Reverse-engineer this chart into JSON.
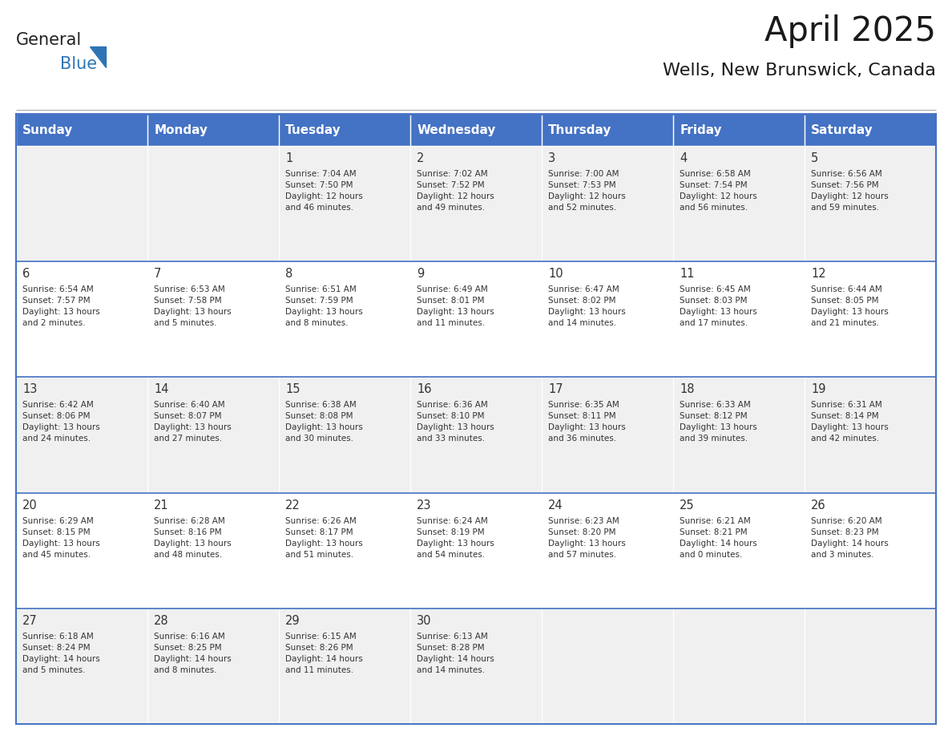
{
  "title": "April 2025",
  "subtitle": "Wells, New Brunswick, Canada",
  "header_bg": "#4472C4",
  "header_text_color": "#FFFFFF",
  "days_of_week": [
    "Sunday",
    "Monday",
    "Tuesday",
    "Wednesday",
    "Thursday",
    "Friday",
    "Saturday"
  ],
  "row_bg_odd": "#F0F0F0",
  "row_bg_even": "#FFFFFF",
  "cell_border_color": "#4472C4",
  "cell_border_thin": "#CCCCCC",
  "day_number_color": "#333333",
  "cell_text_color": "#333333",
  "logo_general_color": "#222222",
  "logo_blue_color": "#2E75B6",
  "weeks": [
    [
      {
        "day": null,
        "info": ""
      },
      {
        "day": null,
        "info": ""
      },
      {
        "day": 1,
        "info": "Sunrise: 7:04 AM\nSunset: 7:50 PM\nDaylight: 12 hours\nand 46 minutes."
      },
      {
        "day": 2,
        "info": "Sunrise: 7:02 AM\nSunset: 7:52 PM\nDaylight: 12 hours\nand 49 minutes."
      },
      {
        "day": 3,
        "info": "Sunrise: 7:00 AM\nSunset: 7:53 PM\nDaylight: 12 hours\nand 52 minutes."
      },
      {
        "day": 4,
        "info": "Sunrise: 6:58 AM\nSunset: 7:54 PM\nDaylight: 12 hours\nand 56 minutes."
      },
      {
        "day": 5,
        "info": "Sunrise: 6:56 AM\nSunset: 7:56 PM\nDaylight: 12 hours\nand 59 minutes."
      }
    ],
    [
      {
        "day": 6,
        "info": "Sunrise: 6:54 AM\nSunset: 7:57 PM\nDaylight: 13 hours\nand 2 minutes."
      },
      {
        "day": 7,
        "info": "Sunrise: 6:53 AM\nSunset: 7:58 PM\nDaylight: 13 hours\nand 5 minutes."
      },
      {
        "day": 8,
        "info": "Sunrise: 6:51 AM\nSunset: 7:59 PM\nDaylight: 13 hours\nand 8 minutes."
      },
      {
        "day": 9,
        "info": "Sunrise: 6:49 AM\nSunset: 8:01 PM\nDaylight: 13 hours\nand 11 minutes."
      },
      {
        "day": 10,
        "info": "Sunrise: 6:47 AM\nSunset: 8:02 PM\nDaylight: 13 hours\nand 14 minutes."
      },
      {
        "day": 11,
        "info": "Sunrise: 6:45 AM\nSunset: 8:03 PM\nDaylight: 13 hours\nand 17 minutes."
      },
      {
        "day": 12,
        "info": "Sunrise: 6:44 AM\nSunset: 8:05 PM\nDaylight: 13 hours\nand 21 minutes."
      }
    ],
    [
      {
        "day": 13,
        "info": "Sunrise: 6:42 AM\nSunset: 8:06 PM\nDaylight: 13 hours\nand 24 minutes."
      },
      {
        "day": 14,
        "info": "Sunrise: 6:40 AM\nSunset: 8:07 PM\nDaylight: 13 hours\nand 27 minutes."
      },
      {
        "day": 15,
        "info": "Sunrise: 6:38 AM\nSunset: 8:08 PM\nDaylight: 13 hours\nand 30 minutes."
      },
      {
        "day": 16,
        "info": "Sunrise: 6:36 AM\nSunset: 8:10 PM\nDaylight: 13 hours\nand 33 minutes."
      },
      {
        "day": 17,
        "info": "Sunrise: 6:35 AM\nSunset: 8:11 PM\nDaylight: 13 hours\nand 36 minutes."
      },
      {
        "day": 18,
        "info": "Sunrise: 6:33 AM\nSunset: 8:12 PM\nDaylight: 13 hours\nand 39 minutes."
      },
      {
        "day": 19,
        "info": "Sunrise: 6:31 AM\nSunset: 8:14 PM\nDaylight: 13 hours\nand 42 minutes."
      }
    ],
    [
      {
        "day": 20,
        "info": "Sunrise: 6:29 AM\nSunset: 8:15 PM\nDaylight: 13 hours\nand 45 minutes."
      },
      {
        "day": 21,
        "info": "Sunrise: 6:28 AM\nSunset: 8:16 PM\nDaylight: 13 hours\nand 48 minutes."
      },
      {
        "day": 22,
        "info": "Sunrise: 6:26 AM\nSunset: 8:17 PM\nDaylight: 13 hours\nand 51 minutes."
      },
      {
        "day": 23,
        "info": "Sunrise: 6:24 AM\nSunset: 8:19 PM\nDaylight: 13 hours\nand 54 minutes."
      },
      {
        "day": 24,
        "info": "Sunrise: 6:23 AM\nSunset: 8:20 PM\nDaylight: 13 hours\nand 57 minutes."
      },
      {
        "day": 25,
        "info": "Sunrise: 6:21 AM\nSunset: 8:21 PM\nDaylight: 14 hours\nand 0 minutes."
      },
      {
        "day": 26,
        "info": "Sunrise: 6:20 AM\nSunset: 8:23 PM\nDaylight: 14 hours\nand 3 minutes."
      }
    ],
    [
      {
        "day": 27,
        "info": "Sunrise: 6:18 AM\nSunset: 8:24 PM\nDaylight: 14 hours\nand 5 minutes."
      },
      {
        "day": 28,
        "info": "Sunrise: 6:16 AM\nSunset: 8:25 PM\nDaylight: 14 hours\nand 8 minutes."
      },
      {
        "day": 29,
        "info": "Sunrise: 6:15 AM\nSunset: 8:26 PM\nDaylight: 14 hours\nand 11 minutes."
      },
      {
        "day": 30,
        "info": "Sunrise: 6:13 AM\nSunset: 8:28 PM\nDaylight: 14 hours\nand 14 minutes."
      },
      {
        "day": null,
        "info": ""
      },
      {
        "day": null,
        "info": ""
      },
      {
        "day": null,
        "info": ""
      }
    ]
  ]
}
